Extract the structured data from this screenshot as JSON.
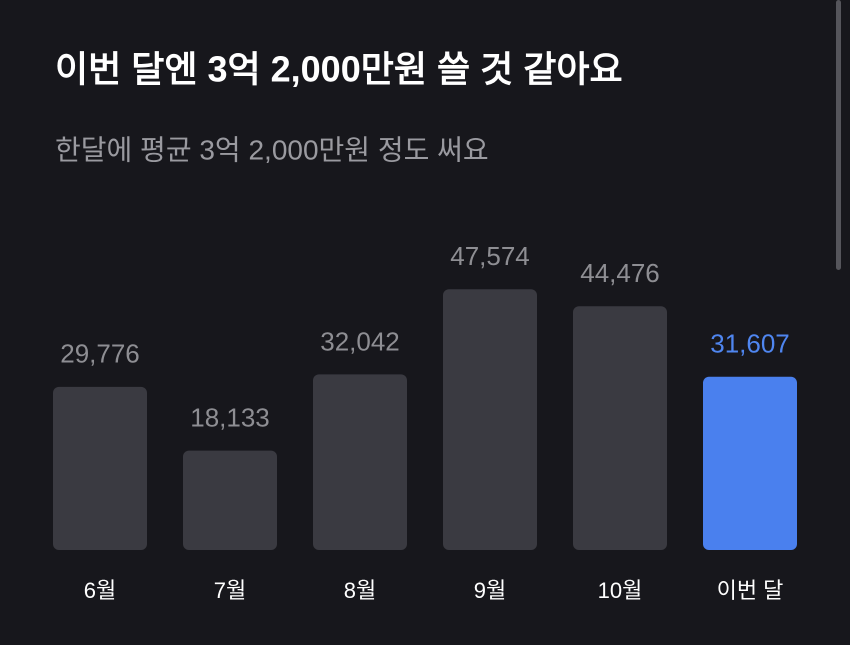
{
  "chart_data": {
    "type": "bar",
    "title": "이번 달엔 3억 2,000만원 쓸 것 같아요",
    "subtitle": "한달에 평균 3억 2,000만원 정도 써요",
    "categories": [
      "6월",
      "7월",
      "8월",
      "9월",
      "10월",
      "이번 달"
    ],
    "values": [
      29776,
      18133,
      32042,
      47574,
      44476,
      31607
    ],
    "value_labels": [
      "29,776",
      "18,133",
      "32,042",
      "47,574",
      "44,476",
      "31,607"
    ],
    "bar_colors": [
      "#3a3a41",
      "#3a3a41",
      "#3a3a41",
      "#3a3a41",
      "#3a3a41",
      "#4a80ee"
    ],
    "label_colors": [
      "#8e8e93",
      "#8e8e93",
      "#8e8e93",
      "#8e8e93",
      "#8e8e93",
      "#4f86f0"
    ]
  }
}
